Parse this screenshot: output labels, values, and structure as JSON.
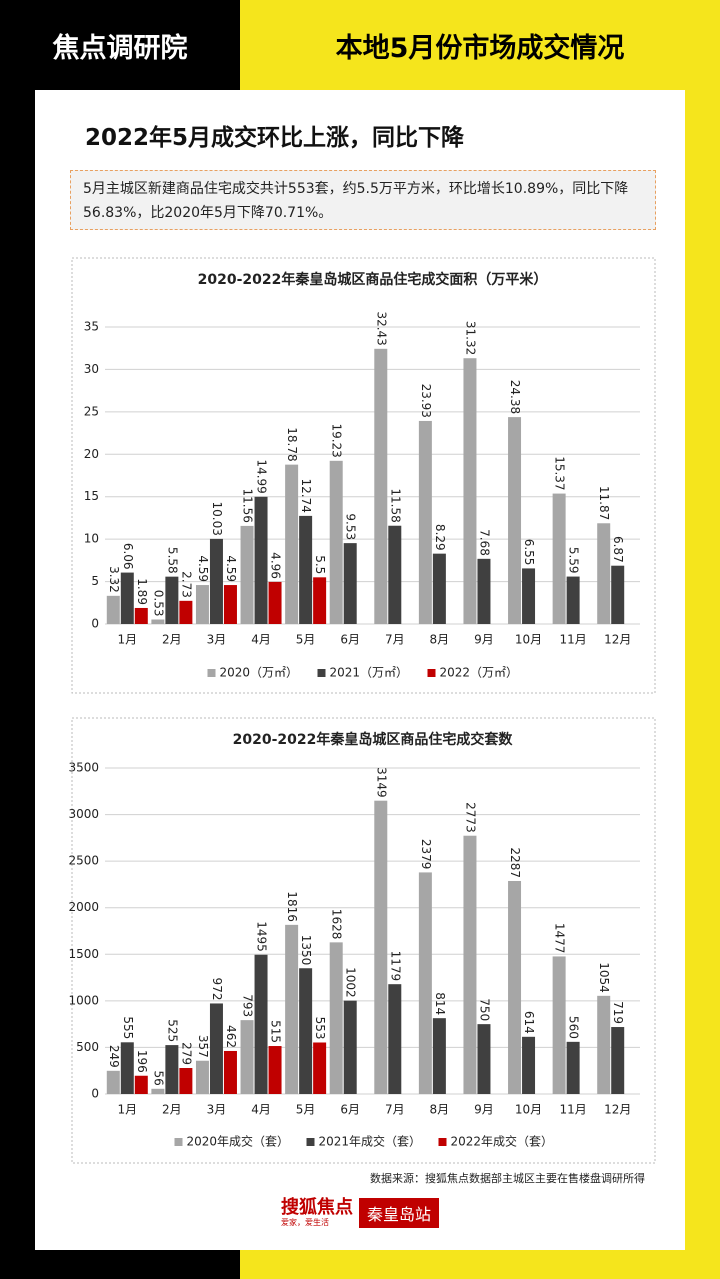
{
  "header": {
    "left": "焦点调研院",
    "right": "本地5月份市场成交情况"
  },
  "heading": "2022年5月成交环比上涨，同比下降",
  "summary": "5月主城区新建商品住宅成交共计553套，约5.5万平方米，环比增长10.89%，同比下降56.83%，比2020年5月下降70.71%。",
  "chart_data": [
    {
      "type": "bar",
      "title": "2020-2022年秦皇岛城区商品住宅成交面积（万平米）",
      "categories": [
        "1月",
        "2月",
        "3月",
        "4月",
        "5月",
        "6月",
        "7月",
        "8月",
        "9月",
        "10月",
        "11月",
        "12月"
      ],
      "series": [
        {
          "name": "2020（万㎡）",
          "color": "#a6a6a6",
          "values": [
            3.32,
            0.53,
            4.59,
            11.56,
            18.78,
            19.23,
            32.43,
            23.93,
            31.32,
            24.38,
            15.37,
            11.87
          ]
        },
        {
          "name": "2021（万㎡）",
          "color": "#404040",
          "values": [
            6.06,
            5.58,
            10.03,
            14.99,
            12.74,
            9.53,
            11.58,
            8.29,
            7.68,
            6.55,
            5.59,
            6.87
          ]
        },
        {
          "name": "2022（万㎡）",
          "color": "#c00000",
          "values": [
            1.89,
            2.73,
            4.59,
            4.96,
            5.5,
            null,
            null,
            null,
            null,
            null,
            null,
            null
          ]
        }
      ],
      "ylim": [
        0,
        35
      ],
      "yticks": [
        0,
        5,
        10,
        15,
        20,
        25,
        30,
        35
      ],
      "grid": true,
      "legend": "bottom"
    },
    {
      "type": "bar",
      "title": "2020-2022年秦皇岛城区商品住宅成交套数",
      "categories": [
        "1月",
        "2月",
        "3月",
        "4月",
        "5月",
        "6月",
        "7月",
        "8月",
        "9月",
        "10月",
        "11月",
        "12月"
      ],
      "series": [
        {
          "name": "2020年成交（套）",
          "color": "#a6a6a6",
          "values": [
            249,
            56,
            357,
            793,
            1816,
            1628,
            3149,
            2379,
            2773,
            2287,
            1477,
            1054
          ]
        },
        {
          "name": "2021年成交（套）",
          "color": "#404040",
          "values": [
            555,
            525,
            972,
            1495,
            1350,
            1002,
            1179,
            814,
            750,
            614,
            560,
            719
          ]
        },
        {
          "name": "2022年成交（套）",
          "color": "#c00000",
          "values": [
            196,
            279,
            462,
            515,
            553,
            null,
            null,
            null,
            null,
            null,
            null,
            null
          ]
        }
      ],
      "ylim": [
        0,
        3500
      ],
      "yticks": [
        0,
        500,
        1000,
        1500,
        2000,
        2500,
        3000,
        3500
      ],
      "grid": true,
      "legend": "bottom"
    }
  ],
  "source": "数据来源：搜狐焦点数据部主城区主要在售楼盘调研所得",
  "logo": {
    "brand": "搜狐焦点",
    "slogan": "爱家，爱生活",
    "station": "秦皇岛站"
  }
}
